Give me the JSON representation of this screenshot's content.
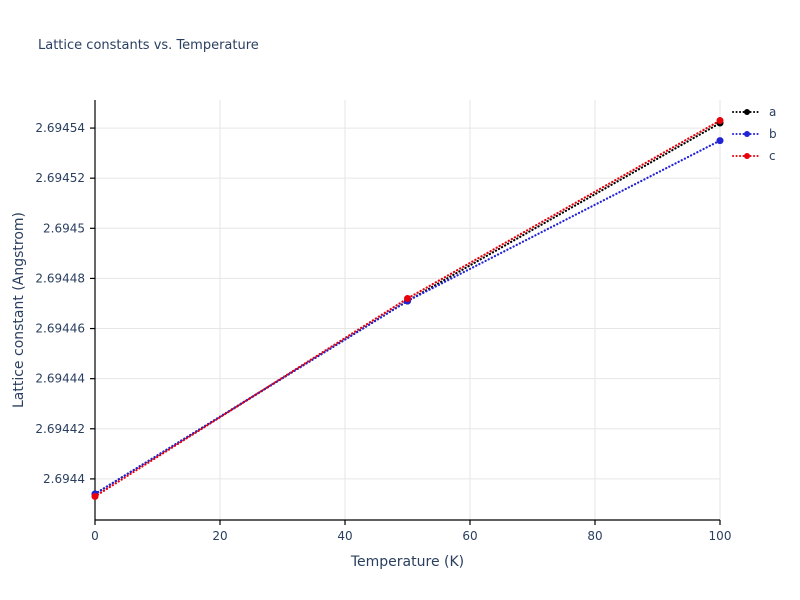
{
  "chart_data": {
    "type": "line",
    "title": "Lattice constants vs. Temperature",
    "xlabel": "Temperature (K)",
    "ylabel": "Lattice constant (Angstrom)",
    "x": [
      0,
      50,
      100
    ],
    "series": [
      {
        "name": "a",
        "color": "#000000",
        "values": [
          2.694394,
          2.694471,
          2.694542
        ]
      },
      {
        "name": "b",
        "color": "#2222d6",
        "values": [
          2.694394,
          2.694471,
          2.694535
        ]
      },
      {
        "name": "c",
        "color": "#e8000b",
        "values": [
          2.694393,
          2.694472,
          2.694543
        ]
      }
    ],
    "xticks": [
      0,
      20,
      40,
      60,
      80,
      100
    ],
    "yticks": [
      2.6944,
      2.69442,
      2.69444,
      2.69446,
      2.69448,
      2.6945,
      2.69452,
      2.69454
    ],
    "xlim": [
      0,
      100
    ],
    "ylim": [
      2.6943836,
      2.6945512
    ],
    "grid": true,
    "line_style": "dotted",
    "marker": "circle",
    "legend": {
      "position": "top-right-outside",
      "entries": [
        "a",
        "b",
        "c"
      ]
    },
    "colors": {
      "grid": "#e6e6e6",
      "axis": "#000000",
      "text": "#2a3f5f"
    }
  }
}
